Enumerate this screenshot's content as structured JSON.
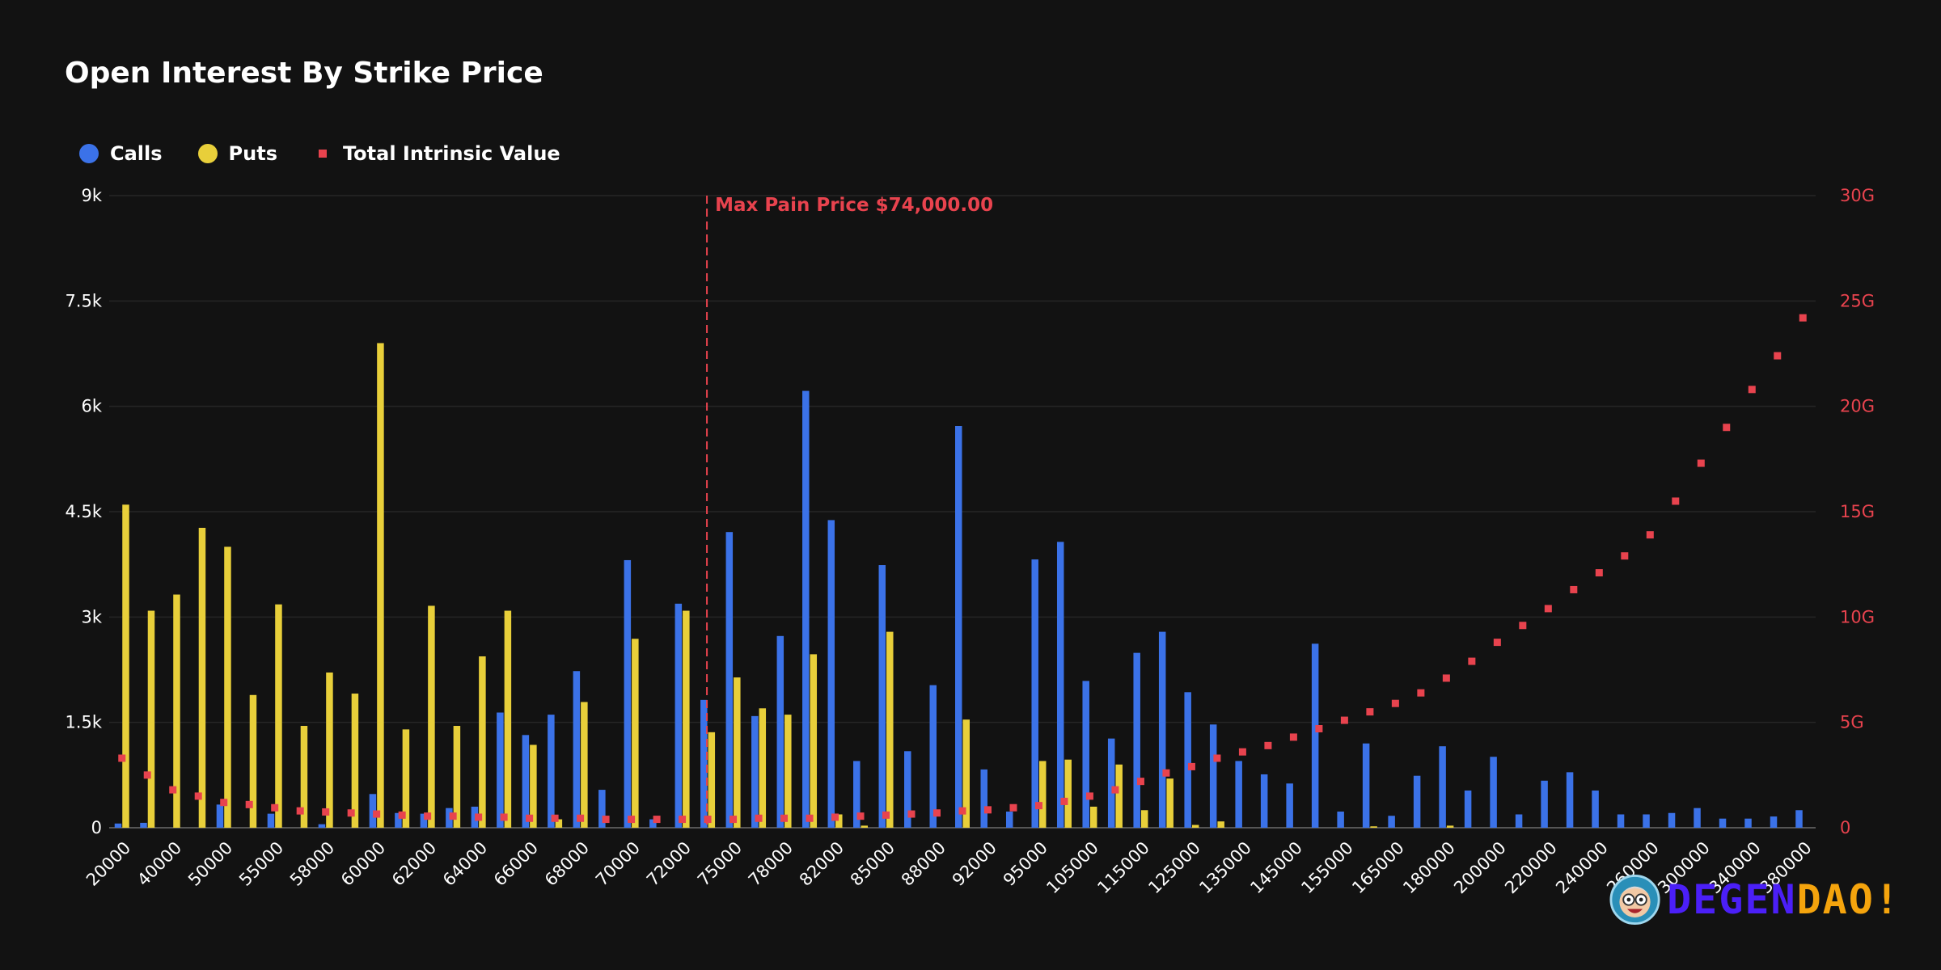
{
  "chart_data": {
    "type": "bar",
    "title": "Open Interest By Strike Price",
    "legend": {
      "placement": "top-left",
      "items": [
        {
          "name": "Calls",
          "color": "#3b72e8",
          "marker": "circle"
        },
        {
          "name": "Puts",
          "color": "#e8cf3a",
          "marker": "circle"
        },
        {
          "name": "Total Intrinsic Value",
          "color": "#e8434e",
          "marker": "square"
        }
      ]
    },
    "y_left": {
      "min": 0,
      "max": 9000,
      "ticks": [
        "0",
        "1.5k",
        "3k",
        "4.5k",
        "6k",
        "7.5k",
        "9k"
      ]
    },
    "y_right": {
      "min": 0,
      "max": 30,
      "unit": "G",
      "ticks": [
        "0",
        "5G",
        "10G",
        "15G",
        "20G",
        "25G",
        "30G"
      ]
    },
    "grid": true,
    "x_tick_labels": [
      "20000",
      "40000",
      "50000",
      "55000",
      "58000",
      "60000",
      "62000",
      "64000",
      "66000",
      "68000",
      "70000",
      "72000",
      "75000",
      "78000",
      "82000",
      "85000",
      "88000",
      "92000",
      "95000",
      "105000",
      "115000",
      "125000",
      "135000",
      "145000",
      "155000",
      "165000",
      "180000",
      "200000",
      "220000",
      "240000",
      "260000",
      "300000",
      "340000",
      "380000"
    ],
    "max_pain": {
      "label": "Max Pain Price $74,000.00",
      "strike_index": 23
    },
    "strikes": [
      {
        "calls": 60,
        "puts": 4600,
        "tiv": 3.3
      },
      {
        "calls": 70,
        "puts": 3090,
        "tiv": 2.5
      },
      {
        "calls": 0,
        "puts": 3320,
        "tiv": 1.8
      },
      {
        "calls": 0,
        "puts": 4270,
        "tiv": 1.5
      },
      {
        "calls": 330,
        "puts": 4000,
        "tiv": 1.2
      },
      {
        "calls": 0,
        "puts": 1890,
        "tiv": 1.1
      },
      {
        "calls": 200,
        "puts": 3180,
        "tiv": 0.95
      },
      {
        "calls": 0,
        "puts": 1450,
        "tiv": 0.8
      },
      {
        "calls": 50,
        "puts": 2210,
        "tiv": 0.75
      },
      {
        "calls": 0,
        "puts": 1910,
        "tiv": 0.7
      },
      {
        "calls": 480,
        "puts": 6900,
        "tiv": 0.65
      },
      {
        "calls": 210,
        "puts": 1400,
        "tiv": 0.6
      },
      {
        "calls": 200,
        "puts": 3160,
        "tiv": 0.55
      },
      {
        "calls": 280,
        "puts": 1450,
        "tiv": 0.55
      },
      {
        "calls": 300,
        "puts": 2440,
        "tiv": 0.5
      },
      {
        "calls": 1640,
        "puts": 3090,
        "tiv": 0.5
      },
      {
        "calls": 1320,
        "puts": 1180,
        "tiv": 0.45
      },
      {
        "calls": 1610,
        "puts": 120,
        "tiv": 0.45
      },
      {
        "calls": 2230,
        "puts": 1790,
        "tiv": 0.45
      },
      {
        "calls": 540,
        "puts": 0,
        "tiv": 0.4
      },
      {
        "calls": 3810,
        "puts": 2690,
        "tiv": 0.4
      },
      {
        "calls": 120,
        "puts": 0,
        "tiv": 0.4
      },
      {
        "calls": 3190,
        "puts": 3090,
        "tiv": 0.4
      },
      {
        "calls": 1820,
        "puts": 1360,
        "tiv": 0.4
      },
      {
        "calls": 4210,
        "puts": 2140,
        "tiv": 0.4
      },
      {
        "calls": 1590,
        "puts": 1700,
        "tiv": 0.45
      },
      {
        "calls": 2730,
        "puts": 1610,
        "tiv": 0.45
      },
      {
        "calls": 6220,
        "puts": 2470,
        "tiv": 0.45
      },
      {
        "calls": 4380,
        "puts": 190,
        "tiv": 0.5
      },
      {
        "calls": 950,
        "puts": 30,
        "tiv": 0.55
      },
      {
        "calls": 3740,
        "puts": 2790,
        "tiv": 0.6
      },
      {
        "calls": 1090,
        "puts": 0,
        "tiv": 0.65
      },
      {
        "calls": 2030,
        "puts": 0,
        "tiv": 0.7
      },
      {
        "calls": 5720,
        "puts": 1540,
        "tiv": 0.8
      },
      {
        "calls": 830,
        "puts": 0,
        "tiv": 0.85
      },
      {
        "calls": 230,
        "puts": 0,
        "tiv": 0.95
      },
      {
        "calls": 3820,
        "puts": 950,
        "tiv": 1.05
      },
      {
        "calls": 4070,
        "puts": 970,
        "tiv": 1.25
      },
      {
        "calls": 2090,
        "puts": 300,
        "tiv": 1.5
      },
      {
        "calls": 1270,
        "puts": 900,
        "tiv": 1.8
      },
      {
        "calls": 2490,
        "puts": 250,
        "tiv": 2.2
      },
      {
        "calls": 2790,
        "puts": 700,
        "tiv": 2.6
      },
      {
        "calls": 1930,
        "puts": 40,
        "tiv": 2.9
      },
      {
        "calls": 1470,
        "puts": 90,
        "tiv": 3.3
      },
      {
        "calls": 950,
        "puts": 0,
        "tiv": 3.6
      },
      {
        "calls": 760,
        "puts": 0,
        "tiv": 3.9
      },
      {
        "calls": 630,
        "puts": 0,
        "tiv": 4.3
      },
      {
        "calls": 2620,
        "puts": 0,
        "tiv": 4.7
      },
      {
        "calls": 230,
        "puts": 0,
        "tiv": 5.1
      },
      {
        "calls": 1200,
        "puts": 20,
        "tiv": 5.5
      },
      {
        "calls": 170,
        "puts": 0,
        "tiv": 5.9
      },
      {
        "calls": 740,
        "puts": 0,
        "tiv": 6.4
      },
      {
        "calls": 1160,
        "puts": 30,
        "tiv": 7.1
      },
      {
        "calls": 530,
        "puts": 0,
        "tiv": 7.9
      },
      {
        "calls": 1010,
        "puts": 0,
        "tiv": 8.8
      },
      {
        "calls": 190,
        "puts": 0,
        "tiv": 9.6
      },
      {
        "calls": 670,
        "puts": 0,
        "tiv": 10.4
      },
      {
        "calls": 790,
        "puts": 0,
        "tiv": 11.3
      },
      {
        "calls": 530,
        "puts": 0,
        "tiv": 12.1
      },
      {
        "calls": 190,
        "puts": 0,
        "tiv": 12.9
      },
      {
        "calls": 190,
        "puts": 0,
        "tiv": 13.9
      },
      {
        "calls": 210,
        "puts": 0,
        "tiv": 15.5
      },
      {
        "calls": 280,
        "puts": 0,
        "tiv": 17.3
      },
      {
        "calls": 130,
        "puts": 0,
        "tiv": 19.0
      },
      {
        "calls": 130,
        "puts": 0,
        "tiv": 20.8
      },
      {
        "calls": 160,
        "puts": 0,
        "tiv": 22.4
      },
      {
        "calls": 250,
        "puts": 0,
        "tiv": 24.2
      }
    ]
  },
  "brand": {
    "part_a": "DEGEN",
    "part_b": "DAO!",
    "mascot": "mascot-avatar-icon"
  },
  "colors": {
    "background": "#121212",
    "calls": "#3b72e8",
    "puts": "#e8cf3a",
    "tiv": "#e8434e"
  }
}
